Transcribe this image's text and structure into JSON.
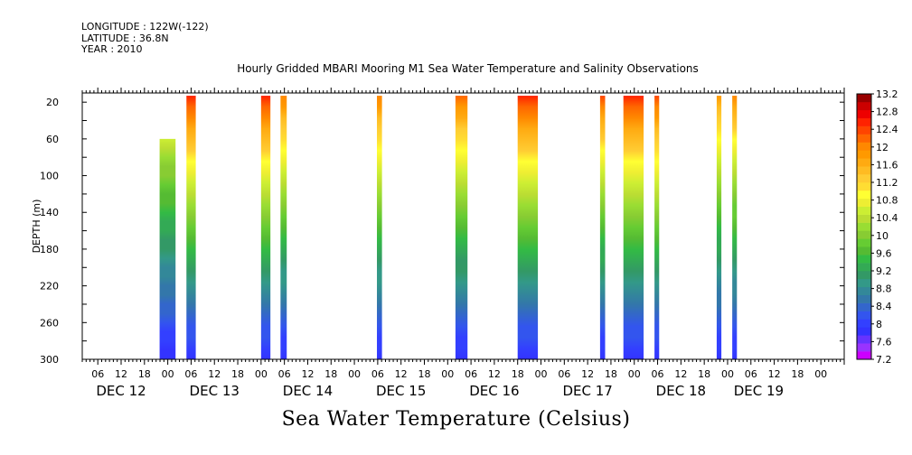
{
  "meta": {
    "longitude": "LONGITUDE : 122W(-122)",
    "latitude": "LATITUDE : 36.8N",
    "year": "YEAR : 2010"
  },
  "title": "Hourly Gridded MBARI Mooring M1 Sea Water Temperature and Salinity Observations",
  "footer": "Sea Water Temperature (Celsius)",
  "chart_data": {
    "type": "heatmap",
    "title": "Hourly Gridded MBARI Mooring M1 Sea Water Temperature and Salinity Observations",
    "colorbar_label": "Sea Water Temperature (Celsius)",
    "ylabel": "DEPTH (m)",
    "y_range": [
      0,
      300
    ],
    "y_inverted": true,
    "y_ticks": [
      20,
      60,
      100,
      140,
      180,
      220,
      260,
      300
    ],
    "x_range_hours": [
      -22,
      174
    ],
    "x_hour_labels": [
      {
        "h": -18,
        "t": "06"
      },
      {
        "h": -12,
        "t": "12"
      },
      {
        "h": -6,
        "t": "18"
      },
      {
        "h": 0,
        "t": "00"
      },
      {
        "h": 6,
        "t": "06"
      },
      {
        "h": 12,
        "t": "12"
      },
      {
        "h": 18,
        "t": "18"
      },
      {
        "h": 24,
        "t": "00"
      },
      {
        "h": 30,
        "t": "06"
      },
      {
        "h": 36,
        "t": "12"
      },
      {
        "h": 42,
        "t": "18"
      },
      {
        "h": 48,
        "t": "00"
      },
      {
        "h": 54,
        "t": "06"
      },
      {
        "h": 60,
        "t": "12"
      },
      {
        "h": 66,
        "t": "18"
      },
      {
        "h": 72,
        "t": "00"
      },
      {
        "h": 78,
        "t": "06"
      },
      {
        "h": 84,
        "t": "12"
      },
      {
        "h": 90,
        "t": "18"
      },
      {
        "h": 96,
        "t": "00"
      },
      {
        "h": 102,
        "t": "06"
      },
      {
        "h": 108,
        "t": "12"
      },
      {
        "h": 114,
        "t": "18"
      },
      {
        "h": 120,
        "t": "00"
      },
      {
        "h": 126,
        "t": "06"
      },
      {
        "h": 132,
        "t": "12"
      },
      {
        "h": 138,
        "t": "18"
      },
      {
        "h": 144,
        "t": "00"
      },
      {
        "h": 150,
        "t": "06"
      },
      {
        "h": 156,
        "t": "12"
      },
      {
        "h": 162,
        "t": "18"
      },
      {
        "h": 168,
        "t": "00"
      }
    ],
    "day_labels": [
      {
        "h": -12,
        "t": "DEC 12"
      },
      {
        "h": 12,
        "t": "DEC 13"
      },
      {
        "h": 36,
        "t": "DEC 14"
      },
      {
        "h": 60,
        "t": "DEC 15"
      },
      {
        "h": 84,
        "t": "DEC 16"
      },
      {
        "h": 108,
        "t": "DEC 17"
      },
      {
        "h": 132,
        "t": "DEC 18"
      },
      {
        "h": 152,
        "t": "DEC 19"
      }
    ],
    "data_segments": [
      {
        "start_h": -2.1,
        "end_h": 2.0,
        "top_depth": 60,
        "surface_temp": 11.2
      },
      {
        "start_h": 4.8,
        "end_h": 7.2,
        "top_depth": 20,
        "surface_temp": 12.6
      },
      {
        "start_h": 24.0,
        "end_h": 26.4,
        "top_depth": 20,
        "surface_temp": 12.6
      },
      {
        "start_h": 29.0,
        "end_h": 30.6,
        "top_depth": 20,
        "surface_temp": 12.1
      },
      {
        "start_h": 53.8,
        "end_h": 55.1,
        "top_depth": 20,
        "surface_temp": 12.1
      },
      {
        "start_h": 74.0,
        "end_h": 77.1,
        "top_depth": 20,
        "surface_temp": 12.2
      },
      {
        "start_h": 90.0,
        "end_h": 95.2,
        "top_depth": 20,
        "surface_temp": 12.6
      },
      {
        "start_h": 111.2,
        "end_h": 112.5,
        "top_depth": 20,
        "surface_temp": 12.3
      },
      {
        "start_h": 117.2,
        "end_h": 122.4,
        "top_depth": 20,
        "surface_temp": 12.6
      },
      {
        "start_h": 125.2,
        "end_h": 126.4,
        "top_depth": 20,
        "surface_temp": 12.4
      },
      {
        "start_h": 141.2,
        "end_h": 142.4,
        "top_depth": 20,
        "surface_temp": 11.8
      },
      {
        "start_h": 145.2,
        "end_h": 146.4,
        "top_depth": 20,
        "surface_temp": 12.0
      }
    ],
    "colorbar": {
      "min": 7.2,
      "max": 13.2,
      "step": 0.2,
      "tick_labels": [
        "13.2",
        "12.8",
        "12.4",
        "12",
        "11.6",
        "11.2",
        "10.8",
        "10.4",
        "10",
        "9.6",
        "9.2",
        "8.8",
        "8.4",
        "8",
        "7.6",
        "7.2"
      ],
      "colors": [
        "#cc00ff",
        "#9933ff",
        "#6633ff",
        "#3333ff",
        "#3340ff",
        "#3355ee",
        "#3366cc",
        "#3377aa",
        "#338899",
        "#339988",
        "#339966",
        "#33aa55",
        "#33bb44",
        "#55bb33",
        "#66cc33",
        "#88cc33",
        "#99dd33",
        "#bbdd33",
        "#ccee33",
        "#eeee33",
        "#ffff33",
        "#ffdd33",
        "#ffcc33",
        "#ffbb22",
        "#ffaa11",
        "#ff9900",
        "#ff8800",
        "#ff6600",
        "#ff4400",
        "#ff2200",
        "#ee0000",
        "#cc0000",
        "#990000"
      ]
    }
  }
}
